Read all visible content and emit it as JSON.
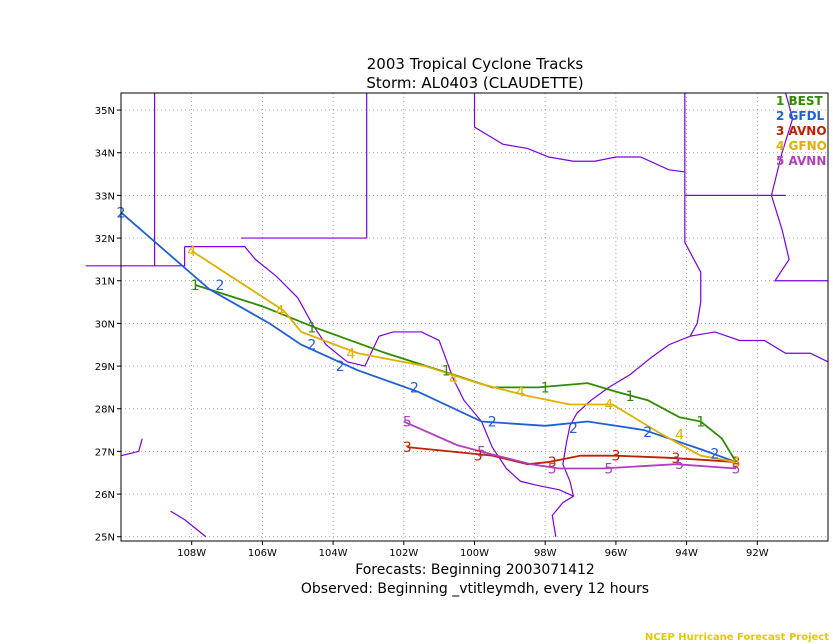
{
  "chart_data": {
    "type": "line",
    "title": "2003 Tropical Cyclone Tracks",
    "subtitle": "Storm: AL0403 (CLAUDETTE)",
    "footer_forecasts": "Forecasts: Beginning 2003071412",
    "footer_observed": "Observed: Beginning _vtitleymdh, every 12 hours",
    "credit": "NCEP Hurricane Forecast Project",
    "xlim": [
      -110,
      -90
    ],
    "ylim": [
      24.9,
      35.4
    ],
    "x_ticks": [
      -108,
      -106,
      -104,
      -102,
      -100,
      -98,
      -96,
      -94,
      -92
    ],
    "x_tick_labels": [
      "108W",
      "106W",
      "104W",
      "102W",
      "100W",
      "98W",
      "96W",
      "94W",
      "92W"
    ],
    "y_ticks": [
      25,
      26,
      27,
      28,
      29,
      30,
      31,
      32,
      33,
      34,
      35
    ],
    "y_tick_labels": [
      "25N",
      "26N",
      "27N",
      "28N",
      "29N",
      "30N",
      "31N",
      "32N",
      "33N",
      "34N",
      "35N"
    ],
    "grid": true,
    "legend_position": "top-right",
    "series": [
      {
        "name": "BEST",
        "legend_label": "1 BEST",
        "marker": "1",
        "color": "#2e8b00",
        "lon": [
          -92.6,
          -93.0,
          -93.6,
          -94.2,
          -95.1,
          -96.0,
          -96.8,
          -98.2,
          -98.6,
          -99.5,
          -100.6,
          -102.5,
          -104.5,
          -106.0,
          -107.9
        ],
        "lat": [
          26.75,
          27.3,
          27.7,
          27.8,
          28.2,
          28.4,
          28.6,
          28.5,
          28.5,
          28.5,
          28.8,
          29.3,
          29.9,
          30.4,
          30.9
        ],
        "marker_lon": [
          -93.6,
          -95.6,
          -98.0,
          -100.8,
          -104.6,
          -107.9
        ],
        "marker_lat": [
          27.7,
          28.3,
          28.5,
          28.9,
          29.9,
          30.9
        ]
      },
      {
        "name": "GFDL",
        "legend_label": "2 GFDL",
        "marker": "2",
        "color": "#1f5fd6",
        "lon": [
          -92.6,
          -93.6,
          -95.2,
          -96.8,
          -98.0,
          -99.8,
          -101.6,
          -103.3,
          -104.9,
          -105.8,
          -107.5,
          -110.0
        ],
        "lat": [
          26.75,
          27.05,
          27.5,
          27.7,
          27.6,
          27.7,
          28.4,
          28.9,
          29.5,
          30.0,
          30.8,
          32.6
        ],
        "marker_lon": [
          -93.2,
          -95.1,
          -97.2,
          -99.5,
          -101.7,
          -103.8,
          -104.6,
          -107.2,
          -110.0
        ],
        "marker_lat": [
          26.95,
          27.45,
          27.55,
          27.7,
          28.5,
          29.0,
          29.5,
          30.9,
          32.6
        ]
      },
      {
        "name": "AVNO",
        "legend_label": "3 AVNO",
        "marker": "3",
        "color": "#c02000",
        "lon": [
          -92.6,
          -93.5,
          -94.5,
          -96.0,
          -97.0,
          -97.9,
          -98.5,
          -99.5,
          -101.9
        ],
        "lat": [
          26.75,
          26.8,
          26.85,
          26.9,
          26.9,
          26.75,
          26.7,
          26.9,
          27.1
        ],
        "marker_lon": [
          -92.6,
          -94.3,
          -96.0,
          -97.8,
          -99.9,
          -101.9
        ],
        "marker_lat": [
          26.75,
          26.85,
          26.9,
          26.75,
          26.9,
          27.1
        ]
      },
      {
        "name": "GFNO",
        "legend_label": "4 GFNO",
        "marker": "4",
        "color": "#e0b000",
        "lon": [
          -92.6,
          -93.6,
          -94.7,
          -96.1,
          -97.3,
          -98.5,
          -99.9,
          -101.4,
          -103.3,
          -104.9,
          -105.4,
          -108.0
        ],
        "lat": [
          26.75,
          26.9,
          27.4,
          28.1,
          28.1,
          28.3,
          28.6,
          29.0,
          29.3,
          29.8,
          30.3,
          31.7
        ],
        "marker_lon": [
          -92.6,
          -94.2,
          -96.2,
          -98.7,
          -100.6,
          -103.5,
          -105.5,
          -108.0
        ],
        "marker_lat": [
          26.75,
          27.4,
          28.1,
          28.4,
          28.7,
          29.3,
          30.3,
          31.7
        ]
      },
      {
        "name": "AVNN",
        "legend_label": "5 AVNN",
        "marker": "5",
        "color": "#b040c0",
        "lon": [
          -92.6,
          -94.3,
          -96.4,
          -97.6,
          -98.4,
          -99.6,
          -100.5,
          -102.0
        ],
        "lat": [
          26.6,
          26.7,
          26.6,
          26.6,
          26.7,
          26.95,
          27.15,
          27.7
        ],
        "marker_lon": [
          -92.6,
          -94.2,
          -96.2,
          -97.8,
          -99.8,
          -101.9
        ],
        "marker_lat": [
          26.6,
          26.7,
          26.6,
          26.6,
          27.0,
          27.7
        ]
      }
    ]
  },
  "map_colors": {
    "boundary": "#7b00e6",
    "grid": "#888888",
    "frame": "#000000"
  }
}
